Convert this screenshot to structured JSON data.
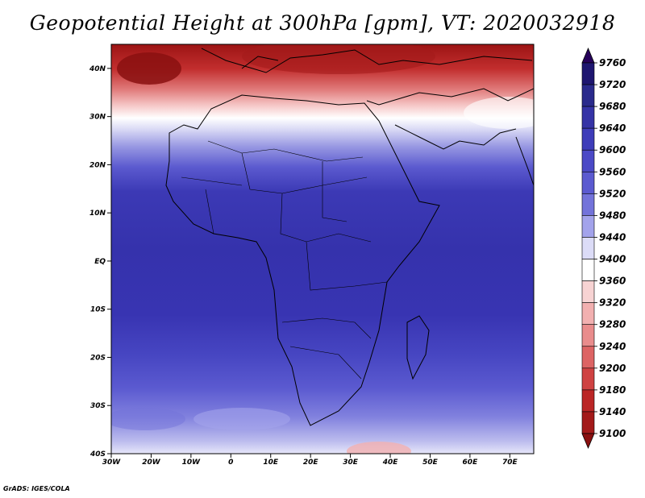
{
  "title": "Geopotential Height at 300hPa [gpm], VT: 2020032918",
  "credit": "GrADS: IGES/COLA",
  "map": {
    "lon_range": [
      -30,
      76
    ],
    "lat_range": [
      -40,
      45
    ],
    "lat_labels": [
      "40N",
      "30N",
      "20N",
      "10N",
      "EQ",
      "10S",
      "20S",
      "30S",
      "40S"
    ],
    "lon_labels": [
      "30W",
      "20W",
      "10W",
      "0",
      "10E",
      "20E",
      "30E",
      "40E",
      "50E",
      "60E",
      "70E"
    ]
  },
  "colorbar": {
    "levels": [
      "9760",
      "9720",
      "9680",
      "9640",
      "9600",
      "9560",
      "9520",
      "9480",
      "9440",
      "9400",
      "9360",
      "9320",
      "9280",
      "9240",
      "9200",
      "9180",
      "9140",
      "9100"
    ],
    "colors": [
      "#26005a",
      "#1e1670",
      "#2a2a8c",
      "#3533a6",
      "#3e3cb9",
      "#4b49c6",
      "#5b5ad0",
      "#7373da",
      "#a3a3eb",
      "#dcdcf7",
      "#ffffff",
      "#f7d3d3",
      "#f2b0b0",
      "#e98c8c",
      "#dd6464",
      "#cf4242",
      "#bb2626",
      "#a31a1a",
      "#8a1010"
    ]
  },
  "chart_data": {
    "type": "heatmap",
    "title": "Geopotential Height at 300hPa [gpm], VT: 2020032918",
    "variable": "Geopotential Height at 300hPa",
    "units": "gpm",
    "valid_time": "2020032918",
    "lon_range": [
      -30,
      76
    ],
    "lat_range": [
      -40,
      45
    ],
    "color_levels": [
      9100,
      9140,
      9180,
      9200,
      9240,
      9280,
      9320,
      9360,
      9400,
      9440,
      9480,
      9520,
      9560,
      9600,
      9640,
      9680,
      9720,
      9760
    ],
    "description_by_lat": [
      {
        "lat": 40,
        "value": 9120
      },
      {
        "lat": 35,
        "value": 9250
      },
      {
        "lat": 30,
        "value": 9420
      },
      {
        "lat": 25,
        "value": 9560
      },
      {
        "lat": 20,
        "value": 9640
      },
      {
        "lat": 10,
        "value": 9700
      },
      {
        "lat": 0,
        "value": 9700
      },
      {
        "lat": -10,
        "value": 9680
      },
      {
        "lat": -20,
        "value": 9640
      },
      {
        "lat": -30,
        "value": 9560
      },
      {
        "lat": -38,
        "value": 9460
      }
    ]
  }
}
